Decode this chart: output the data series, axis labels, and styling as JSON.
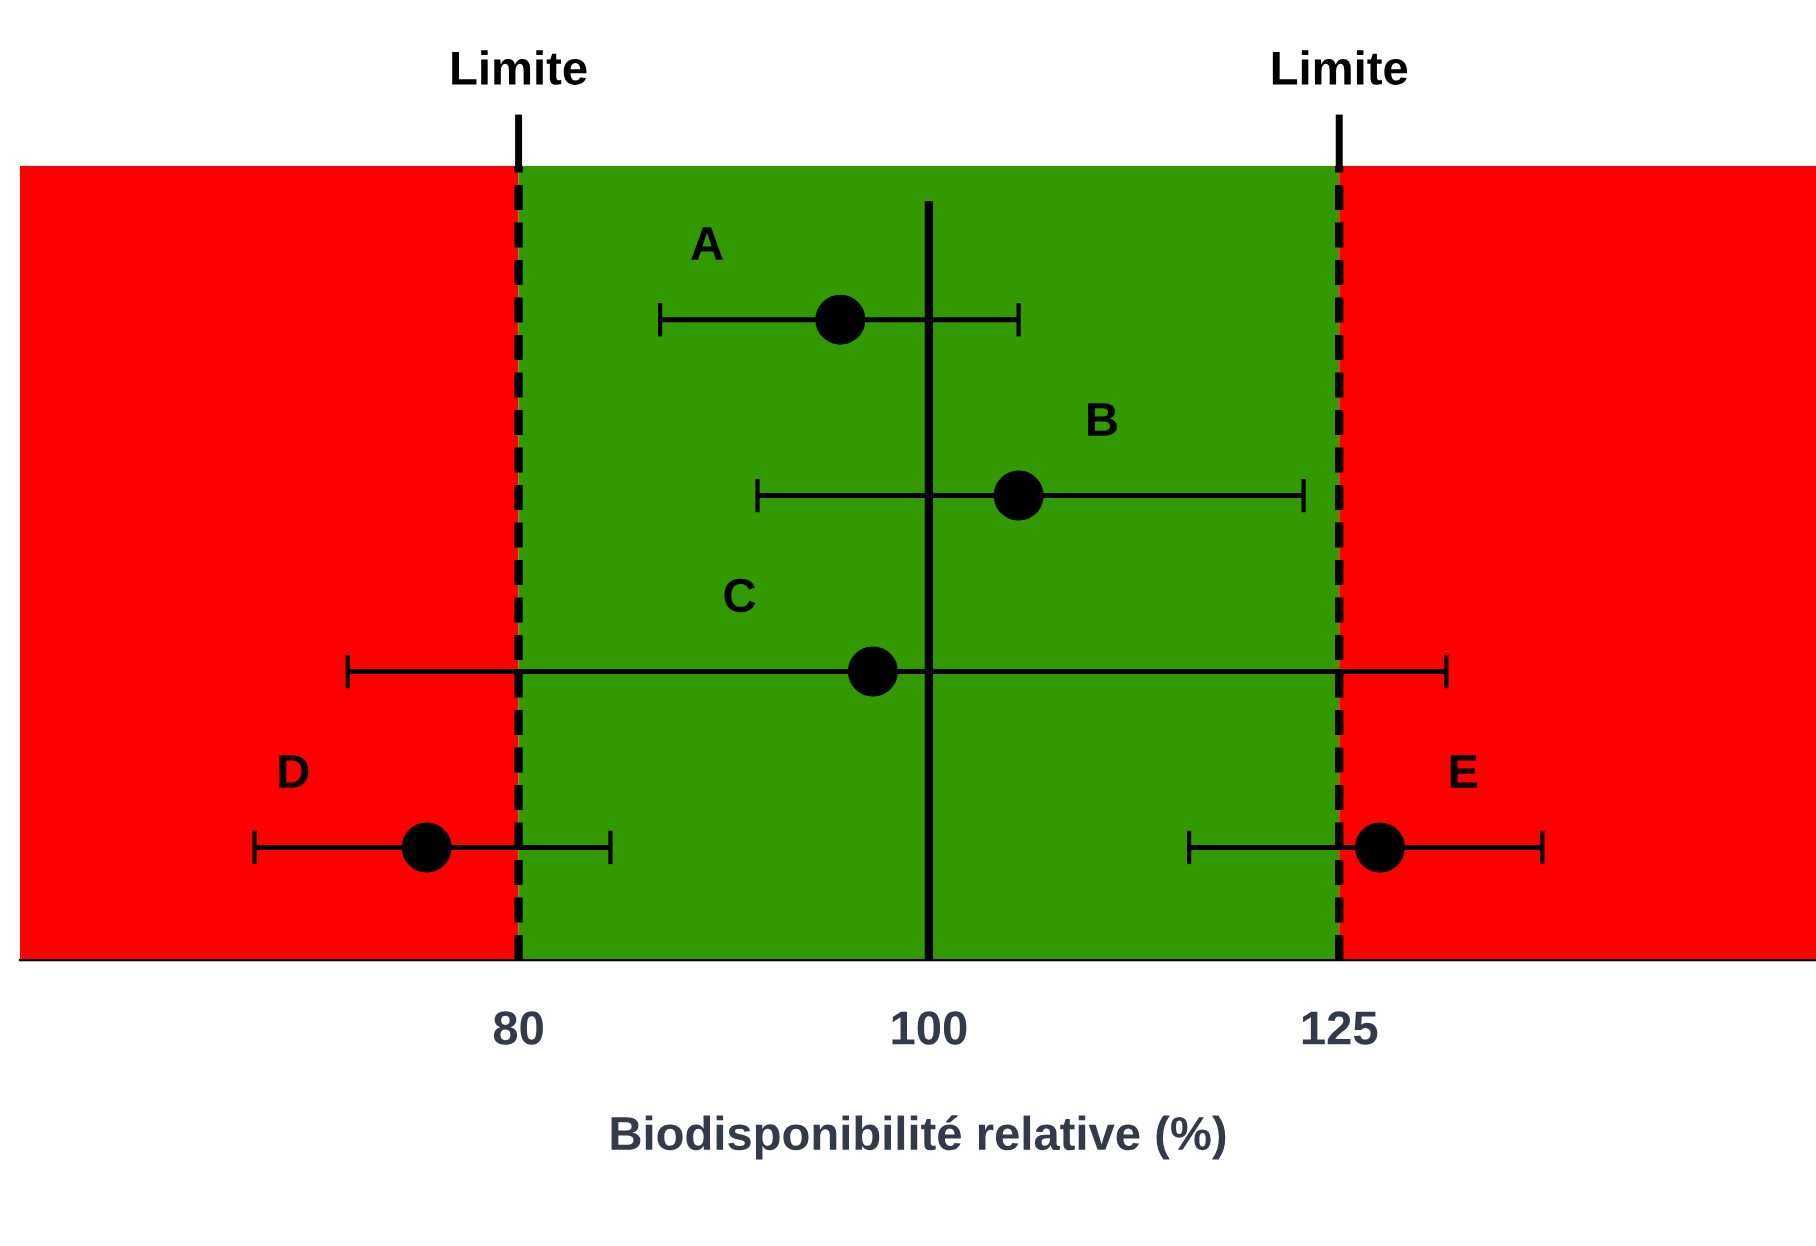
{
  "chart_data": {
    "type": "scatter",
    "orientation": "horizontal",
    "categories": [
      null,
      null,
      null,
      null
    ],
    "series": [
      {
        "color": "#000000",
        "values": [
          95.3,
          105,
          97,
          76.1
        ],
        "errors": [
          [
            86.4,
            105
          ],
          [
            91.1,
            122.6
          ],
          [
            72.9,
            132.5
          ],
          [
            69.3,
            84.1
          ]
        ],
        "value_labels": [
          "A",
          "B",
          "C",
          "D"
        ]
      },
      {
        "color": "#000000",
        "values": [
          null,
          null,
          null,
          127.8
        ],
        "errors": [
          null,
          null,
          null,
          [
            115.2,
            139.6
          ]
        ],
        "value_labels": [
          null,
          null,
          null,
          "E"
        ]
      }
    ],
    "marker": "circle",
    "log": "x",
    "xlim": [
      61,
      162
    ],
    "xticks": [
      80,
      100,
      125
    ],
    "xlabel": "Biodisponibilité relative (%)",
    "bands": [
      {
        "axis": "x",
        "from": 61,
        "to": 80,
        "color": "#ff0000"
      },
      {
        "axis": "x",
        "from": 80,
        "to": 125,
        "color": "#339900"
      },
      {
        "axis": "x",
        "from": 125,
        "to": 162,
        "color": "#ff0000"
      }
    ],
    "ref_lines": [
      {
        "axis": "x",
        "value": 80,
        "label": "Limite",
        "line_style": "dashed"
      },
      {
        "axis": "x",
        "value": 125,
        "label": "Limite",
        "line_style": "dashed"
      },
      {
        "axis": "x",
        "value": 100,
        "line_style": "solid"
      }
    ],
    "grid": false,
    "legend": false
  }
}
